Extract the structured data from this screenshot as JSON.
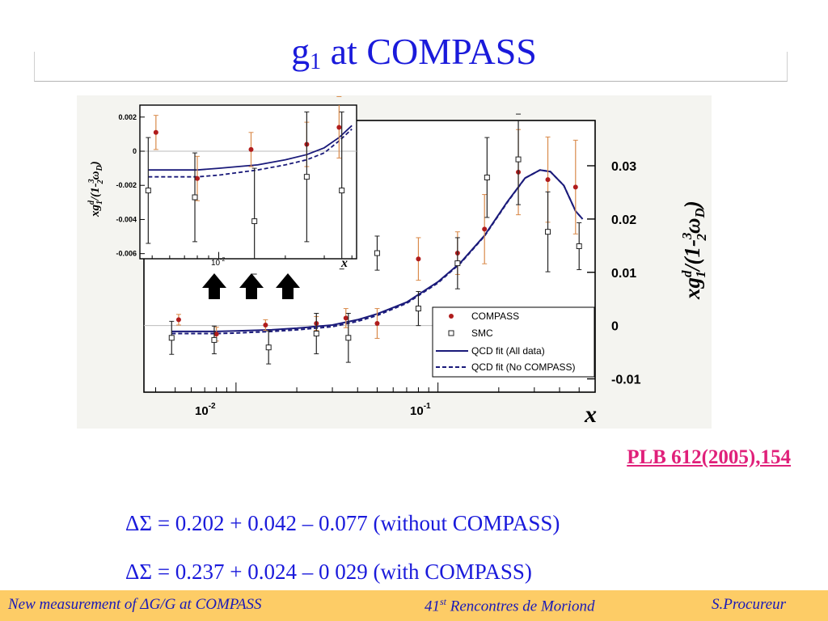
{
  "slide": {
    "title_main": "g",
    "title_sub": "1",
    "title_rest": " at COMPASS",
    "reference": "PLB 612(2005),154",
    "delta_sigma_1": "ΔΣ = 0.202 + 0.042 – 0.077 (without COMPASS)",
    "delta_sigma_2": "ΔΣ = 0.237 + 0.024 – 0 029 (with COMPASS)"
  },
  "footer": {
    "left": "New measurement of ΔG/G at COMPASS",
    "center_num": "41",
    "center_sup": "st",
    "center_rest": " Rencontres de Moriond",
    "right": "S.Procureur"
  },
  "colors": {
    "title": "#1a1adb",
    "compass": "#b01c1c",
    "compass_err": "#d98a4a",
    "smc": "#222222",
    "fit": "#1a1a7a"
  },
  "chart_data": [
    {
      "type": "scatter",
      "ylabel": "xg1d/(1-3/2ωD)",
      "xlabel": "x",
      "xscale": "log",
      "xlim": [
        0.0035,
        0.6
      ],
      "ylim": [
        -0.0125,
        0.0385
      ],
      "x_tick_labels": [
        "10-2",
        "10-1"
      ],
      "y_ticks": [
        -0.01,
        0,
        0.01,
        0.02,
        0.03
      ],
      "y_tick_labels": [
        "-0.01",
        "0",
        "0.01",
        "0.02",
        "0.03"
      ],
      "legend_position": "bottom-right",
      "legend": [
        "COMPASS",
        "SMC",
        "QCD fit (All data)",
        "QCD fit (No COMPASS)"
      ],
      "series": [
        {
          "name": "COMPASS",
          "marker": "filled-circle",
          "points": [
            {
              "x": 0.0052,
              "y": 0.0011,
              "err": 0.001
            },
            {
              "x": 0.008,
              "y": -0.0016,
              "err": 0.0013
            },
            {
              "x": 0.014,
              "y": 0.0001,
              "err": 0.001
            },
            {
              "x": 0.025,
              "y": 0.0004,
              "err": 0.0013
            },
            {
              "x": 0.035,
              "y": 0.0014,
              "err": 0.0018
            },
            {
              "x": 0.05,
              "y": 0.0004,
              "err": 0.0028
            },
            {
              "x": 0.08,
              "y": 0.0125,
              "err": 0.004
            },
            {
              "x": 0.125,
              "y": 0.0136,
              "err": 0.004
            },
            {
              "x": 0.17,
              "y": 0.0181,
              "err": 0.0065
            },
            {
              "x": 0.25,
              "y": 0.0288,
              "err": 0.008
            },
            {
              "x": 0.35,
              "y": 0.0274,
              "err": 0.008
            },
            {
              "x": 0.48,
              "y": 0.026,
              "err": 0.0088
            }
          ]
        },
        {
          "name": "SMC",
          "marker": "open-square",
          "points": [
            {
              "x": 0.0048,
              "y": -0.0023,
              "err": 0.0031
            },
            {
              "x": 0.0078,
              "y": -0.0027,
              "err": 0.0026
            },
            {
              "x": 0.0145,
              "y": -0.0041,
              "err": 0.0031
            },
            {
              "x": 0.025,
              "y": -0.0015,
              "err": 0.0038
            },
            {
              "x": 0.036,
              "y": -0.0023,
              "err": 0.0046
            },
            {
              "x": 0.05,
              "y": 0.0136,
              "err": 0.0032
            },
            {
              "x": 0.08,
              "y": 0.0032,
              "err": 0.0032
            },
            {
              "x": 0.125,
              "y": 0.0117,
              "err": 0.0048
            },
            {
              "x": 0.175,
              "y": 0.0278,
              "err": 0.0075
            },
            {
              "x": 0.25,
              "y": 0.0312,
              "err": 0.0085
            },
            {
              "x": 0.35,
              "y": 0.0176,
              "err": 0.0075
            },
            {
              "x": 0.5,
              "y": 0.0149,
              "err": 0.0044
            }
          ]
        },
        {
          "name": "QCD fit (All data)",
          "line": "solid",
          "points": [
            [
              0.0048,
              -0.0011
            ],
            [
              0.006,
              -0.0011
            ],
            [
              0.008,
              -0.0011
            ],
            [
              0.01,
              -0.001
            ],
            [
              0.015,
              -0.0008
            ],
            [
              0.02,
              -0.0005
            ],
            [
              0.03,
              0.0001
            ],
            [
              0.04,
              0.0011
            ],
            [
              0.05,
              0.0022
            ],
            [
              0.07,
              0.0044
            ],
            [
              0.1,
              0.0082
            ],
            [
              0.13,
              0.0119
            ],
            [
              0.17,
              0.0169
            ],
            [
              0.22,
              0.0232
            ],
            [
              0.27,
              0.0277
            ],
            [
              0.32,
              0.0292
            ],
            [
              0.36,
              0.0289
            ],
            [
              0.42,
              0.0263
            ],
            [
              0.48,
              0.0215
            ],
            [
              0.52,
              0.02
            ]
          ]
        },
        {
          "name": "QCD fit (No COMPASS)",
          "line": "dashed",
          "points": [
            [
              0.0048,
              -0.0015
            ],
            [
              0.006,
              -0.0015
            ],
            [
              0.008,
              -0.0015
            ],
            [
              0.01,
              -0.0014
            ],
            [
              0.015,
              -0.0011
            ],
            [
              0.02,
              -0.0008
            ],
            [
              0.03,
              -0.0002
            ],
            [
              0.04,
              0.0008
            ],
            [
              0.05,
              0.0019
            ],
            [
              0.07,
              0.0042
            ],
            [
              0.1,
              0.008
            ],
            [
              0.13,
              0.0118
            ],
            [
              0.17,
              0.0168
            ],
            [
              0.22,
              0.0231
            ],
            [
              0.27,
              0.0277
            ],
            [
              0.32,
              0.0292
            ],
            [
              0.36,
              0.0289
            ],
            [
              0.42,
              0.0263
            ],
            [
              0.48,
              0.0215
            ],
            [
              0.52,
              0.02
            ]
          ]
        }
      ]
    },
    {
      "type": "scatter",
      "ylabel": "xg1d/(1-3/2ωD)",
      "xlabel": "x",
      "xscale": "log",
      "xlim": [
        0.0044,
        0.042
      ],
      "ylim": [
        -0.0063,
        0.0027
      ],
      "x_tick_labels": [
        "10-2"
      ],
      "y_ticks": [
        0.002,
        0,
        -0.002,
        -0.004,
        -0.006
      ],
      "y_tick_labels": [
        "0.002",
        "0",
        "-0.002",
        "-0.004",
        "-0.006"
      ],
      "series": [
        {
          "name": "COMPASS",
          "marker": "filled-circle",
          "points": [
            {
              "x": 0.0052,
              "y": 0.0011,
              "err": 0.001
            },
            {
              "x": 0.008,
              "y": -0.0016,
              "err": 0.0013
            },
            {
              "x": 0.014,
              "y": 0.0001,
              "err": 0.001
            },
            {
              "x": 0.025,
              "y": 0.0004,
              "err": 0.0013
            },
            {
              "x": 0.035,
              "y": 0.0014,
              "err": 0.0018
            }
          ]
        },
        {
          "name": "SMC",
          "marker": "open-square",
          "points": [
            {
              "x": 0.0048,
              "y": -0.0023,
              "err": 0.0031
            },
            {
              "x": 0.0078,
              "y": -0.0027,
              "err": 0.0026
            },
            {
              "x": 0.0145,
              "y": -0.0041,
              "err": 0.0031
            },
            {
              "x": 0.025,
              "y": -0.0015,
              "err": 0.0038
            },
            {
              "x": 0.036,
              "y": -0.0023,
              "err": 0.0046
            }
          ]
        },
        {
          "name": "QCD fit (All data)",
          "line": "solid",
          "points": [
            [
              0.0048,
              -0.0011
            ],
            [
              0.006,
              -0.0011
            ],
            [
              0.008,
              -0.0011
            ],
            [
              0.01,
              -0.001
            ],
            [
              0.015,
              -0.0008
            ],
            [
              0.02,
              -0.0005
            ],
            [
              0.025,
              -0.0002
            ],
            [
              0.03,
              0.0002
            ],
            [
              0.035,
              0.0008
            ],
            [
              0.04,
              0.0015
            ]
          ]
        },
        {
          "name": "QCD fit (No COMPASS)",
          "line": "dashed",
          "points": [
            [
              0.0048,
              -0.0015
            ],
            [
              0.006,
              -0.0015
            ],
            [
              0.008,
              -0.0015
            ],
            [
              0.01,
              -0.0014
            ],
            [
              0.015,
              -0.0011
            ],
            [
              0.02,
              -0.0008
            ],
            [
              0.025,
              -0.0005
            ],
            [
              0.03,
              -0.0001
            ],
            [
              0.035,
              0.0006
            ],
            [
              0.04,
              0.0013
            ]
          ]
        }
      ]
    }
  ]
}
